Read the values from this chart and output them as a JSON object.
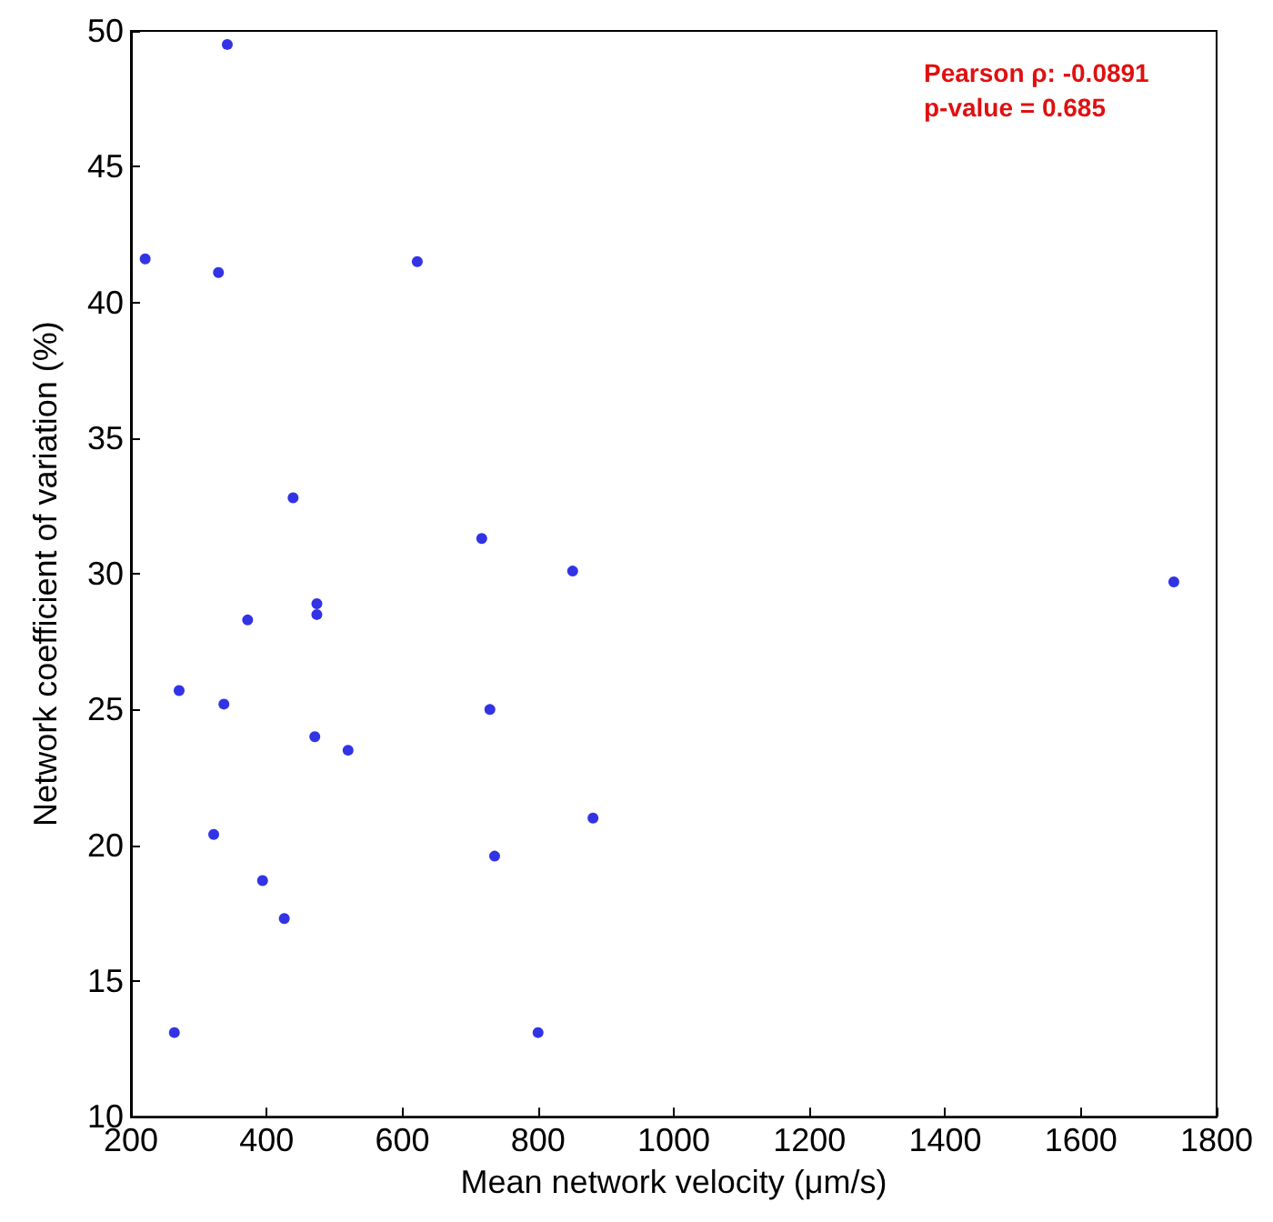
{
  "chart_data": {
    "type": "scatter",
    "xlabel": "Mean network velocity (μm/s)",
    "ylabel": "Network coefficient of variation (%)",
    "annotations": [
      "Pearson ρ: -0.0891",
      "p-value = 0.685"
    ],
    "xlim": [
      200,
      1800
    ],
    "xticks": [
      200,
      400,
      600,
      800,
      1000,
      1200,
      1400,
      1600,
      1800
    ],
    "ylim": [
      10,
      50
    ],
    "yticks": [
      10,
      15,
      20,
      25,
      30,
      35,
      40,
      45,
      50
    ],
    "grid": false,
    "marker": "circle",
    "series": [
      {
        "color": "#0000e0",
        "x": [
          221,
          329,
          342,
          622,
          439,
          717,
          851,
          474,
          474,
          372,
          271,
          337,
          729,
          471,
          520,
          881,
          322,
          736,
          394,
          426,
          264,
          800,
          1737
        ],
        "values": [
          41.6,
          41.1,
          49.5,
          41.5,
          32.8,
          31.3,
          30.1,
          28.9,
          28.5,
          28.3,
          25.7,
          25.2,
          25.0,
          24.0,
          23.5,
          21.0,
          20.4,
          19.6,
          18.7,
          17.3,
          13.1,
          13.1,
          29.7
        ]
      }
    ]
  }
}
